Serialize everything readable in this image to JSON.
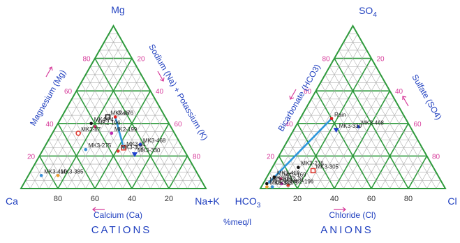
{
  "unit_label": "%meq/l",
  "colors": {
    "outline": "#2e9a3c",
    "grid": "#a6a6a6",
    "tick_text": "#d63a9a",
    "axis_label": "#1f3fbf",
    "point_label": "#222222",
    "flow_line": "#2d96dc"
  },
  "cations": {
    "title": "CATIONS",
    "apex_top": "Mg",
    "apex_left": "Ca",
    "apex_right": "Na+K",
    "left_axis_label": "Magnesium (Mg)",
    "right_axis_label": "Sodium (Na) + Potassium (K)",
    "bottom_axis_label": "Calcium (Ca)",
    "left_ticks": [
      "20",
      "40",
      "60",
      "80"
    ],
    "right_ticks": [
      "20",
      "40",
      "60",
      "80"
    ],
    "bottom_ticks": [
      "80",
      "60",
      "40",
      "20"
    ],
    "samples": [
      {
        "label": "MK4-74",
        "mg_pct": 40,
        "na_pct": 18,
        "marker": "dot",
        "color": "#111111"
      },
      {
        "label": "MK2-276",
        "mg_pct": 44,
        "na_pct": 25,
        "marker": "square",
        "color": "#111111"
      },
      {
        "label": "Rain",
        "mg_pct": 44,
        "na_pct": 29,
        "marker": "dot",
        "color": "#e02020"
      },
      {
        "label": "MK2-196",
        "mg_pct": 38,
        "na_pct": 21,
        "marker": "dot",
        "color": "#cc2a6a"
      },
      {
        "label": "MK3-87",
        "mg_pct": 34,
        "na_pct": 14,
        "marker": "circle",
        "color": "#e03a30"
      },
      {
        "label": "MK2-199",
        "mg_pct": 34,
        "na_pct": 32,
        "marker": "dot",
        "color": "#c02ab0"
      },
      {
        "label": "MK3-275",
        "mg_pct": 24,
        "na_pct": 23,
        "marker": "dot",
        "color": "#3a8fd8"
      },
      {
        "label": "MK3-31",
        "mg_pct": 25,
        "na_pct": 43,
        "marker": "square",
        "color": "#e03a30"
      },
      {
        "label": "MK3-468",
        "mg_pct": 27,
        "na_pct": 51,
        "marker": "dot",
        "color": "#1e3fcf"
      },
      {
        "label": "MK3-305",
        "mg_pct": 23,
        "na_pct": 41,
        "marker": "dot",
        "color": "#e03a30"
      },
      {
        "label": "MK3-330",
        "mg_pct": 21,
        "na_pct": 51,
        "marker": "tri",
        "color": "#1e3fcf"
      },
      {
        "label": "MK3-410",
        "mg_pct": 8,
        "na_pct": 7,
        "marker": "dot",
        "color": "#3a8fd8"
      },
      {
        "label": "MK3-385",
        "mg_pct": 8,
        "na_pct": 16,
        "marker": "dot",
        "color": "#f0a030"
      }
    ],
    "flow_from": "Rain",
    "flow_to": "MK3-31"
  },
  "anions": {
    "title": "ANIONS",
    "apex_top": "SO4",
    "apex_left": "HCO3",
    "apex_right": "Cl",
    "left_axis_label": "Bicarbonate (HCO3)",
    "right_axis_label": "Sulfate (SO4)",
    "bottom_axis_label": "Chloride (Cl)",
    "left_ticks": [
      "20",
      "40",
      "60",
      "80"
    ],
    "right_ticks": [
      "20",
      "40",
      "60",
      "80"
    ],
    "bottom_ticks": [
      "20",
      "40",
      "60",
      "80"
    ],
    "samples": [
      {
        "label": "Rain",
        "so4_pct": 43,
        "cl_pct": 17,
        "marker": "dot",
        "color": "#e02020"
      },
      {
        "label": "MK3-468",
        "so4_pct": 38,
        "cl_pct": 34,
        "marker": "dot",
        "color": "#1e3fcf"
      },
      {
        "label": "MK3-330",
        "so4_pct": 36,
        "cl_pct": 23,
        "marker": "tri",
        "color": "#1e3fcf"
      },
      {
        "label": "MK3-276",
        "so4_pct": 13,
        "cl_pct": 14,
        "marker": "dot",
        "color": "#111111"
      },
      {
        "label": "MK3-305",
        "so4_pct": 11,
        "cl_pct": 23,
        "marker": "square",
        "color": "#e03a30"
      },
      {
        "label": "MK3-410",
        "so4_pct": 7,
        "cl_pct": 4,
        "marker": "dot",
        "color": "#111111"
      },
      {
        "label": "MK2-169",
        "so4_pct": 6,
        "cl_pct": 8,
        "marker": "dot",
        "color": "#cc2a6a"
      },
      {
        "label": "MK3-74",
        "so4_pct": 4,
        "cl_pct": 3,
        "marker": "dot",
        "color": "#3a8fd8"
      },
      {
        "label": "MK3-31",
        "so4_pct": 3,
        "cl_pct": 10,
        "marker": "dot",
        "color": "#c02ab0"
      },
      {
        "label": "MK2-196",
        "so4_pct": 2,
        "cl_pct": 14,
        "marker": "dot",
        "color": "#e03a30"
      },
      {
        "label": "MK3-87",
        "so4_pct": 3,
        "cl_pct": 2,
        "marker": "dot",
        "color": "#111111"
      },
      {
        "label": "MK3-385",
        "so4_pct": 1,
        "cl_pct": 3,
        "marker": "dot",
        "color": "#f0a030"
      },
      {
        "label": "MK3-275",
        "so4_pct": 1,
        "cl_pct": 6,
        "marker": "dot",
        "color": "#3a8fd8"
      }
    ],
    "flow_from": "Rain",
    "flow_to": "MK3-74"
  }
}
